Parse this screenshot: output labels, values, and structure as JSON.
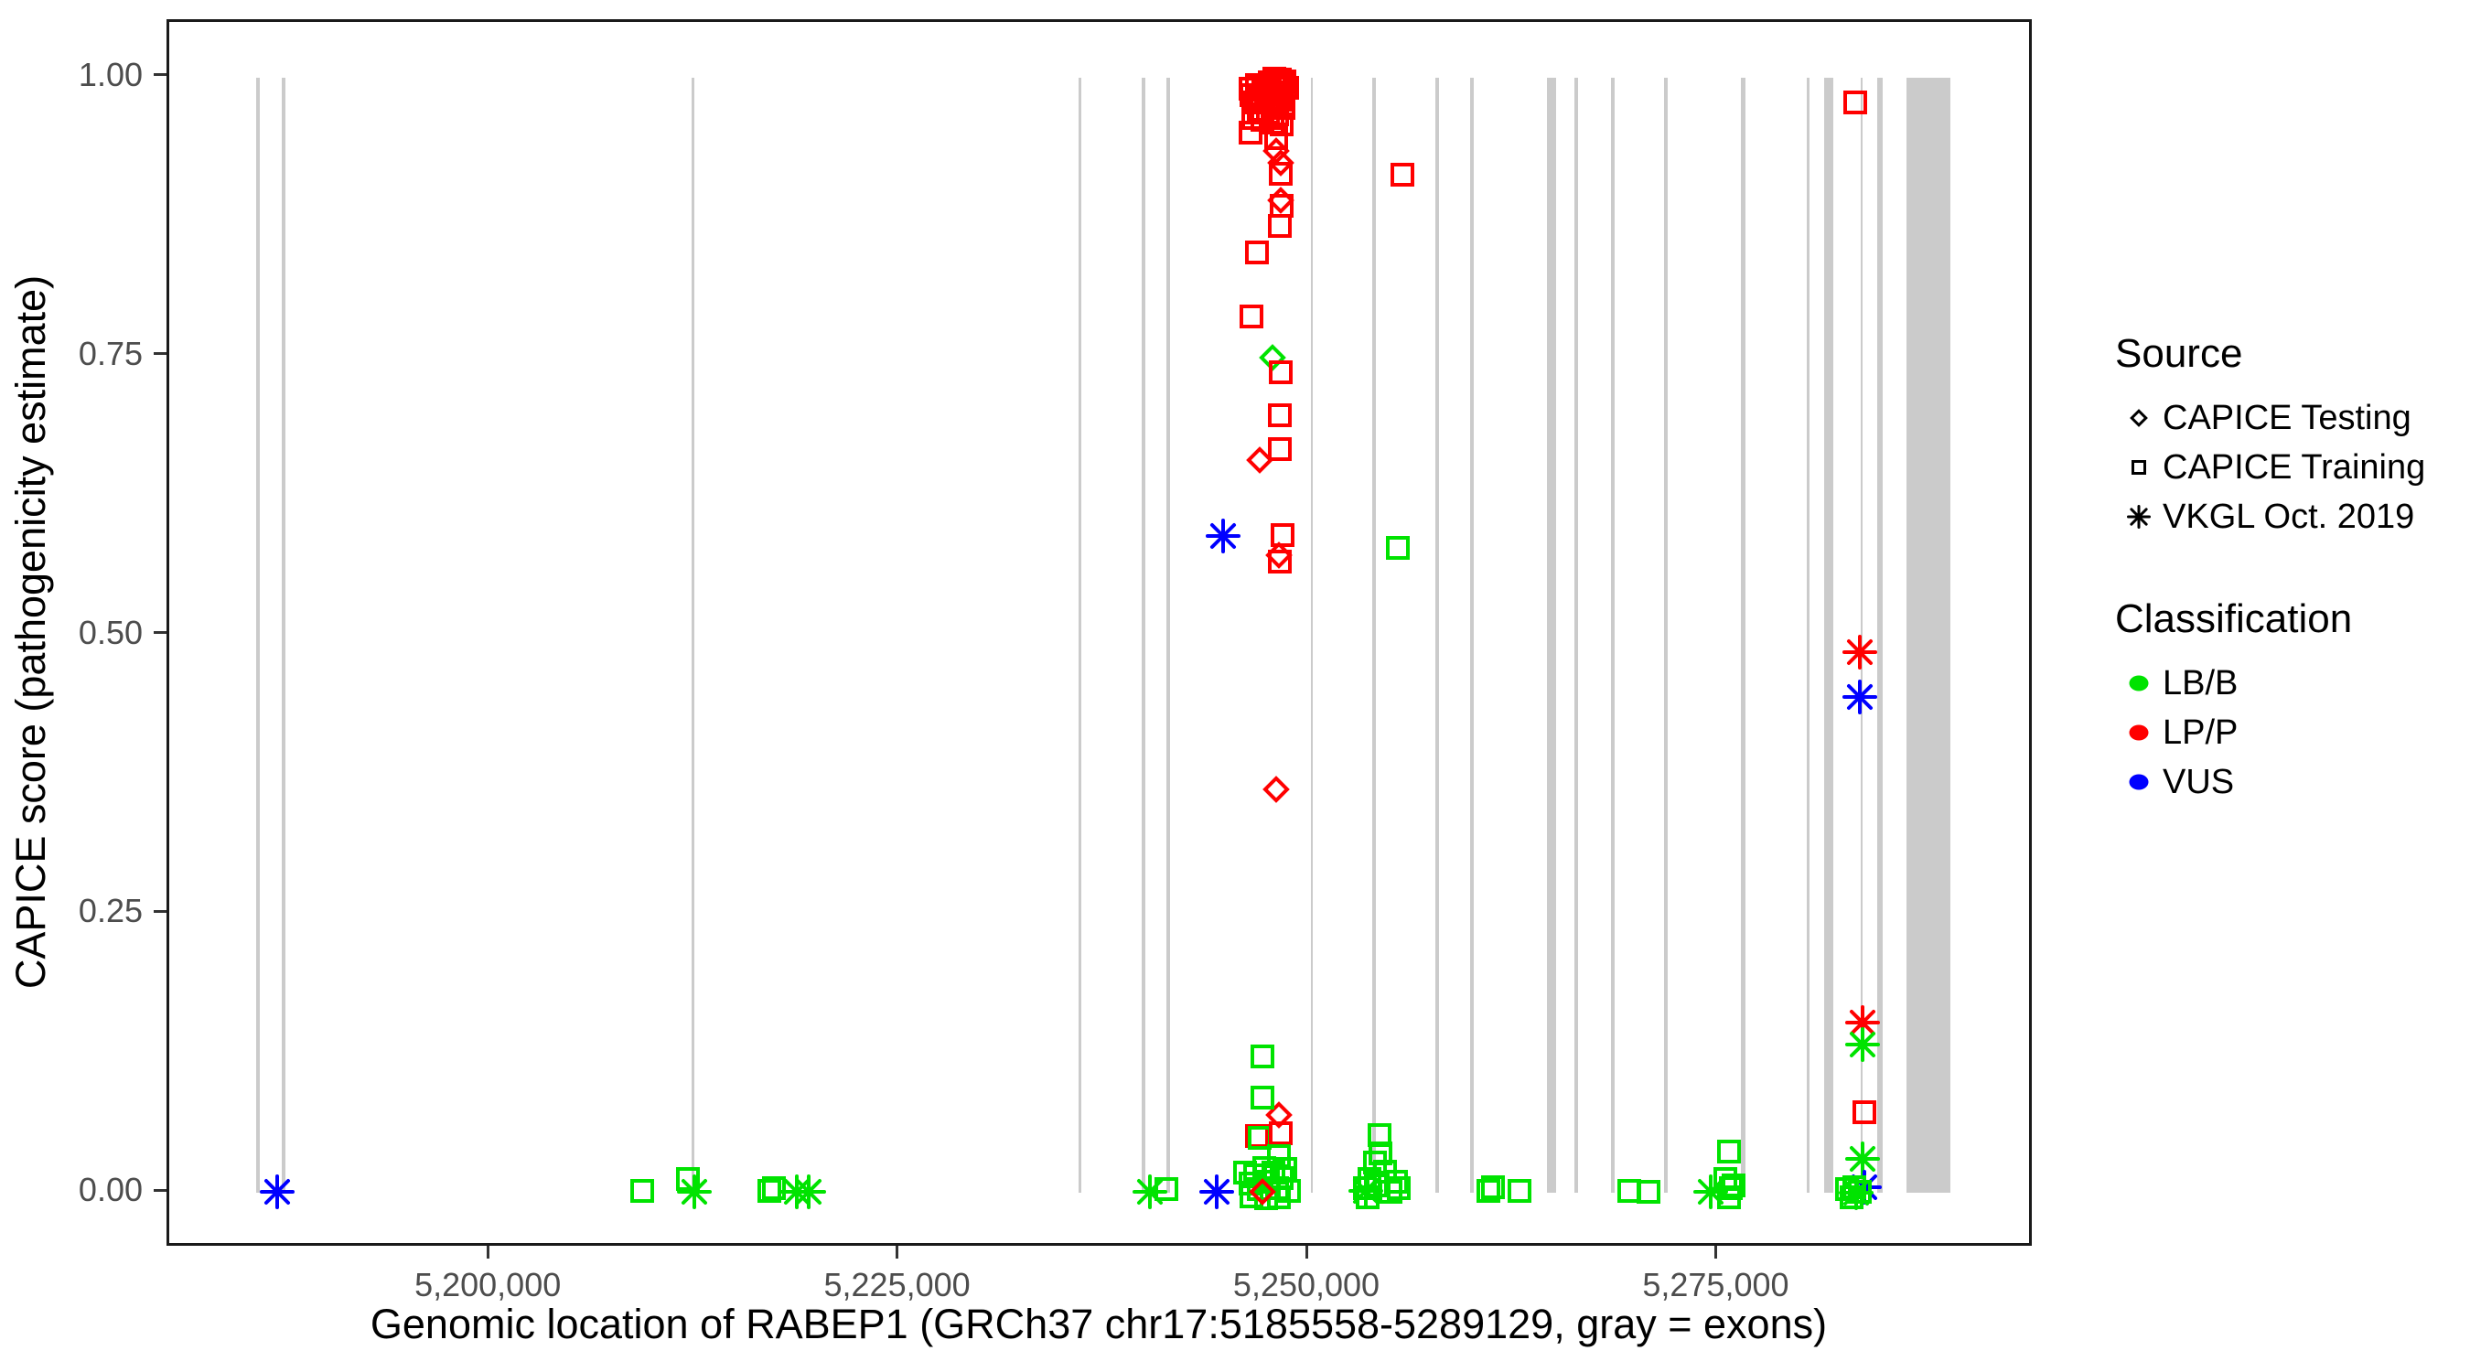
{
  "figure": {
    "x_axis": {
      "label": "Genomic location of RABEP1 (GRCh37 chr17:5185558-5289129, gray = exons)",
      "range": [
        5180379,
        5294308
      ],
      "ticks": [
        {
          "v": 5200000,
          "label": "5,200,000"
        },
        {
          "v": 5225000,
          "label": "5,225,000"
        },
        {
          "v": 5250000,
          "label": "5,250,000"
        },
        {
          "v": 5275000,
          "label": "5,275,000"
        }
      ]
    },
    "y_axis": {
      "label": "CAPICE score (pathogenicity estimate)",
      "range": [
        -0.05,
        1.05
      ],
      "ticks": [
        {
          "v": 1.0,
          "label": "1.00"
        },
        {
          "v": 0.75,
          "label": "0.75"
        },
        {
          "v": 0.5,
          "label": "0.50"
        },
        {
          "v": 0.25,
          "label": "0.25"
        },
        {
          "v": 0.0,
          "label": "0.00"
        }
      ]
    },
    "legend": {
      "source": {
        "title": "Source",
        "items": [
          {
            "label": "CAPICE Testing",
            "shape": "diamond"
          },
          {
            "label": "CAPICE Training",
            "shape": "square"
          },
          {
            "label": "VKGL Oct. 2019",
            "shape": "asterisk"
          }
        ]
      },
      "classification": {
        "title": "Classification",
        "items": [
          {
            "label": "LB/B",
            "color": "#00e300"
          },
          {
            "label": "LP/P",
            "color": "#ff0000"
          },
          {
            "label": "VUS",
            "color": "#0000ff"
          }
        ]
      }
    }
  },
  "colors": {
    "classification": {
      "LB/B": "#00e300",
      "LP/P": "#ff0000",
      "VUS": "#0000ff"
    },
    "exon": "#cbcbcb",
    "axis_text": "#4d4d4d",
    "panel_border": "#1a1a1a"
  },
  "chart_data": {
    "type": "scatter",
    "title": "",
    "xlabel": "Genomic location of RABEP1 (GRCh37 chr17:5185558-5289129, gray = exons)",
    "ylabel": "CAPICE score (pathogenicity estimate)",
    "gene_region": [
      5185558,
      5289129
    ],
    "xlim": [
      5180379,
      5294308
    ],
    "ylim": [
      -0.05,
      1.05
    ],
    "grid": false,
    "legend_position": "right",
    "shape_meaning": {
      "diamond": "CAPICE Testing",
      "square": "CAPICE Training",
      "asterisk": "VKGL Oct. 2019"
    },
    "exons_note": "gray vertical bars spanning score 0 to 1; columns = [center_position, span_bp]",
    "exons": [
      [
        5185790,
        220
      ],
      [
        5187350,
        220
      ],
      [
        5212350,
        170
      ],
      [
        5236010,
        170
      ],
      [
        5239900,
        220
      ],
      [
        5241370,
        220
      ],
      [
        5250180,
        140
      ],
      [
        5253970,
        220
      ],
      [
        5257830,
        220
      ],
      [
        5259950,
        220
      ],
      [
        5264800,
        560
      ],
      [
        5266310,
        220
      ],
      [
        5268540,
        220
      ],
      [
        5271780,
        220
      ],
      [
        5276520,
        280
      ],
      [
        5280480,
        220
      ],
      [
        5281760,
        560
      ],
      [
        5283720,
        110
      ],
      [
        5284890,
        330
      ],
      [
        5287850,
        2680
      ]
    ],
    "points_columns": [
      "genomic_position",
      "capice_score",
      "shape(source)",
      "classification"
    ],
    "points": [
      [
        5186960,
        0.001,
        "asterisk",
        "VUS"
      ],
      [
        5209280,
        0.002,
        "square",
        "LB/B"
      ],
      [
        5212070,
        0.012,
        "square",
        "LB/B"
      ],
      [
        5212460,
        0.001,
        "asterisk",
        "LB/B"
      ],
      [
        5217040,
        0.002,
        "square",
        "LB/B"
      ],
      [
        5217290,
        0.004,
        "square",
        "LB/B"
      ],
      [
        5218710,
        0.001,
        "asterisk",
        "LB/B"
      ],
      [
        5219440,
        0.001,
        "asterisk",
        "LB/B"
      ],
      [
        5240250,
        0.001,
        "asterisk",
        "LB/B"
      ],
      [
        5241310,
        0.003,
        "square",
        "LB/B"
      ],
      [
        5244380,
        0.001,
        "asterisk",
        "VUS"
      ],
      [
        5246830,
        0.051,
        "square",
        "LP/P"
      ],
      [
        5247000,
        0.049,
        "square",
        "LB/B"
      ],
      [
        5248170,
        0.07,
        "diamond",
        "LP/P"
      ],
      [
        5248280,
        0.053,
        "square",
        "LP/P"
      ],
      [
        5248170,
        0.033,
        "square",
        "LB/B"
      ],
      [
        5247170,
        0.122,
        "square",
        "LB/B"
      ],
      [
        5247170,
        0.085,
        "square",
        "LB/B"
      ],
      [
        5246110,
        0.018,
        "square",
        "LB/B"
      ],
      [
        5246400,
        0.008,
        "square",
        "LB/B"
      ],
      [
        5246700,
        0.016,
        "square",
        "LB/B"
      ],
      [
        5246950,
        0.003,
        "square",
        "LB/B"
      ],
      [
        5247250,
        0.022,
        "square",
        "LB/B"
      ],
      [
        5247500,
        0.01,
        "square",
        "LB/B"
      ],
      [
        5247800,
        0.018,
        "square",
        "LB/B"
      ],
      [
        5248050,
        0.004,
        "square",
        "LB/B"
      ],
      [
        5248300,
        0.013,
        "square",
        "LB/B"
      ],
      [
        5248550,
        0.021,
        "square",
        "LB/B"
      ],
      [
        5248750,
        0.002,
        "square",
        "LB/B"
      ],
      [
        5246500,
        -0.003,
        "square",
        "LB/B"
      ],
      [
        5247350,
        -0.005,
        "square",
        "LB/B"
      ],
      [
        5248150,
        -0.004,
        "square",
        "LB/B"
      ],
      [
        5247170,
        0.001,
        "diamond",
        "LP/P"
      ],
      [
        5247900,
        0.999,
        "square",
        "LP/P"
      ],
      [
        5248200,
        0.998,
        "square",
        "LP/P"
      ],
      [
        5248500,
        0.997,
        "square",
        "LP/P"
      ],
      [
        5247600,
        0.996,
        "square",
        "LP/P"
      ],
      [
        5248000,
        0.995,
        "square",
        "LP/P"
      ],
      [
        5248350,
        0.994,
        "square",
        "LP/P"
      ],
      [
        5246800,
        0.993,
        "square",
        "LP/P"
      ],
      [
        5247200,
        0.992,
        "square",
        "LP/P"
      ],
      [
        5248650,
        0.991,
        "square",
        "LP/P"
      ],
      [
        5246400,
        0.99,
        "square",
        "LP/P"
      ],
      [
        5247000,
        0.989,
        "diamond",
        "LP/P"
      ],
      [
        5247450,
        0.988,
        "square",
        "LP/P"
      ],
      [
        5248100,
        0.987,
        "square",
        "LP/P"
      ],
      [
        5248550,
        0.985,
        "diamond",
        "LP/P"
      ],
      [
        5246500,
        0.984,
        "square",
        "LP/P"
      ],
      [
        5247100,
        0.982,
        "square",
        "LP/P"
      ],
      [
        5247700,
        0.981,
        "square",
        "LP/P"
      ],
      [
        5248250,
        0.98,
        "square",
        "LP/P"
      ],
      [
        5246700,
        0.978,
        "square",
        "LP/P"
      ],
      [
        5247300,
        0.976,
        "diamond",
        "LP/P"
      ],
      [
        5247900,
        0.975,
        "square",
        "LP/P"
      ],
      [
        5248450,
        0.973,
        "square",
        "LP/P"
      ],
      [
        5246900,
        0.971,
        "square",
        "LP/P"
      ],
      [
        5247500,
        0.969,
        "square",
        "LP/P"
      ],
      [
        5248050,
        0.967,
        "square",
        "LP/P"
      ],
      [
        5246600,
        0.964,
        "square",
        "LP/P"
      ],
      [
        5247150,
        0.962,
        "square",
        "LP/P"
      ],
      [
        5247750,
        0.96,
        "square",
        "LP/P"
      ],
      [
        5248300,
        0.958,
        "square",
        "LP/P"
      ],
      [
        5246450,
        0.951,
        "square",
        "LP/P"
      ],
      [
        5248000,
        0.946,
        "square",
        "LP/P"
      ],
      [
        5248000,
        0.934,
        "diamond",
        "LP/P"
      ],
      [
        5248280,
        0.924,
        "diamond",
        "LP/P"
      ],
      [
        5248280,
        0.914,
        "square",
        "LP/P"
      ],
      [
        5255710,
        0.913,
        "square",
        "LP/P"
      ],
      [
        5248280,
        0.89,
        "diamond",
        "LP/P"
      ],
      [
        5248330,
        0.885,
        "square",
        "LP/P"
      ],
      [
        5248230,
        0.867,
        "square",
        "LP/P"
      ],
      [
        5246830,
        0.843,
        "square",
        "LP/P"
      ],
      [
        5246500,
        0.786,
        "square",
        "LP/P"
      ],
      [
        5247780,
        0.749,
        "diamond",
        "LB/B"
      ],
      [
        5248280,
        0.736,
        "square",
        "LP/P"
      ],
      [
        5248230,
        0.697,
        "square",
        "LP/P"
      ],
      [
        5248230,
        0.667,
        "square",
        "LP/P"
      ],
      [
        5247000,
        0.657,
        "diamond",
        "LP/P"
      ],
      [
        5244770,
        0.589,
        "asterisk",
        "VUS"
      ],
      [
        5248400,
        0.59,
        "square",
        "LP/P"
      ],
      [
        5248170,
        0.572,
        "diamond",
        "LP/P"
      ],
      [
        5248200,
        0.566,
        "square",
        "LP/P"
      ],
      [
        5255430,
        0.578,
        "square",
        "LB/B"
      ],
      [
        5248000,
        0.362,
        "diamond",
        "LP/P"
      ],
      [
        5254310,
        0.052,
        "square",
        "LB/B"
      ],
      [
        5253400,
        0.004,
        "square",
        "LB/B"
      ],
      [
        5253700,
        0.012,
        "square",
        "LB/B"
      ],
      [
        5254000,
        0.027,
        "square",
        "LB/B"
      ],
      [
        5254350,
        0.035,
        "square",
        "LB/B"
      ],
      [
        5254200,
        0.007,
        "square",
        "LB/B"
      ],
      [
        5254650,
        0.019,
        "square",
        "LB/B"
      ],
      [
        5254950,
        0.001,
        "square",
        "LB/B"
      ],
      [
        5255300,
        0.01,
        "square",
        "LB/B"
      ],
      [
        5253550,
        -0.004,
        "square",
        "LB/B"
      ],
      [
        5255500,
        0.004,
        "square",
        "LB/B"
      ],
      [
        5253450,
        0.002,
        "asterisk",
        "LB/B"
      ],
      [
        5260950,
        0.002,
        "square",
        "LB/B"
      ],
      [
        5261250,
        0.005,
        "square",
        "LB/B"
      ],
      [
        5262850,
        0.002,
        "square",
        "LB/B"
      ],
      [
        5269540,
        0.002,
        "square",
        "LB/B"
      ],
      [
        5270710,
        0.001,
        "square",
        "LB/B"
      ],
      [
        5274510,
        0.001,
        "asterisk",
        "LB/B"
      ],
      [
        5275620,
        0.037,
        "square",
        "LB/B"
      ],
      [
        5275400,
        0.012,
        "square",
        "LB/B"
      ],
      [
        5275750,
        0.004,
        "square",
        "LB/B"
      ],
      [
        5275620,
        -0.004,
        "square",
        "LB/B"
      ],
      [
        5275950,
        0.007,
        "square",
        "LB/B"
      ],
      [
        5283330,
        0.978,
        "square",
        "LP/P"
      ],
      [
        5283610,
        0.485,
        "asterisk",
        "LP/P"
      ],
      [
        5283610,
        0.445,
        "asterisk",
        "VUS"
      ],
      [
        5283780,
        0.153,
        "asterisk",
        "LP/P"
      ],
      [
        5283780,
        0.133,
        "asterisk",
        "LB/B"
      ],
      [
        5283940,
        0.072,
        "square",
        "LP/P"
      ],
      [
        5283830,
        0.03,
        "asterisk",
        "LB/B"
      ],
      [
        5283940,
        0.005,
        "asterisk",
        "VUS"
      ],
      [
        5282830,
        0.003,
        "square",
        "LB/B"
      ],
      [
        5283280,
        0.005,
        "square",
        "LB/B"
      ],
      [
        5283660,
        0.001,
        "square",
        "LB/B"
      ],
      [
        5283160,
        -0.004,
        "square",
        "LB/B"
      ],
      [
        5283440,
        0.0,
        "asterisk",
        "LB/B"
      ]
    ]
  }
}
